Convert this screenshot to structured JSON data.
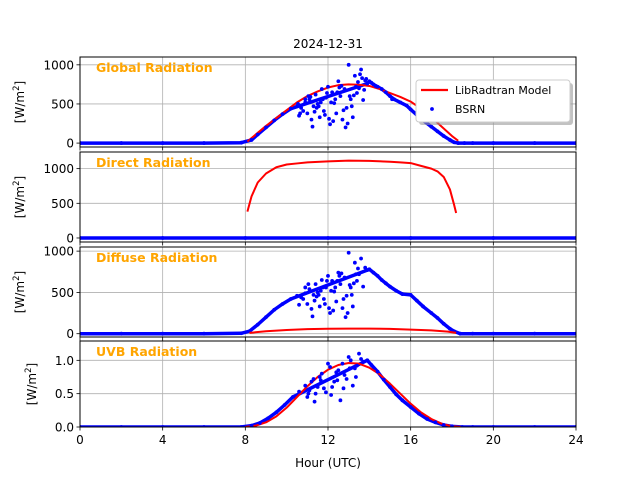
{
  "chart_data": {
    "type": "line",
    "title": "2024-12-31",
    "xlabel": "Hour (UTC)",
    "xlim": [
      0,
      24
    ],
    "xticks": [
      0,
      4,
      8,
      12,
      16,
      20,
      24
    ],
    "grid": true,
    "legend": {
      "location": "right",
      "panel": 0,
      "entries": [
        {
          "label": "LibRadtran Model",
          "style": "line",
          "color": "#ff0000"
        },
        {
          "label": "BSRN",
          "style": "dot",
          "color": "#0000ff"
        }
      ]
    },
    "panels": [
      {
        "title": "Global Radiation",
        "ylabel": "[W/m2]",
        "ylim": [
          -50,
          1100
        ],
        "yticks": [
          0,
          500,
          1000
        ],
        "ytick_labels": [
          "0",
          "500",
          "1000"
        ],
        "series": [
          {
            "name": "LibRadtran Model",
            "type": "line",
            "x": [
              8.1,
              9,
              10,
              10.5,
              11,
              11.5,
              12,
              12.5,
              13,
              13.5,
              14,
              14.5,
              15,
              15.5,
              16,
              16.5,
              17,
              17.5,
              18,
              18.3
            ],
            "y": [
              20,
              220,
              420,
              520,
              600,
              660,
              710,
              740,
              750,
              745,
              730,
              690,
              640,
              590,
              530,
              440,
              330,
              210,
              90,
              30
            ]
          },
          {
            "name": "BSRN",
            "type": "scatter",
            "x": [
              0,
              2,
              4,
              6,
              7.8,
              8.3,
              8.6,
              9,
              9.4,
              9.8,
              10.2,
              10.5,
              10.6,
              10.8,
              10.9,
              11.0,
              11.1,
              11.2,
              11.3,
              11.4,
              11.5,
              11.6,
              11.7,
              11.8,
              11.9,
              12.0,
              12.1,
              12.2,
              12.3,
              12.4,
              12.5,
              12.6,
              12.7,
              12.8,
              12.9,
              13.0,
              13.1,
              13.2,
              13.3,
              13.4,
              13.5,
              13.6,
              13.7,
              13.8,
              13.9,
              14.0,
              14.1,
              14.2,
              14.4,
              14.6,
              14.8,
              15.0,
              15.2,
              15.5,
              15.8,
              16.0,
              16.3,
              16.6,
              17.0,
              17.3,
              17.6,
              17.9,
              18.1,
              18.3,
              18.6,
              19,
              20,
              22,
              24,
              10.7,
              11.05,
              11.35,
              11.65,
              11.95,
              12.25,
              12.55,
              12.85,
              13.15,
              13.45,
              13.75,
              10.9,
              11.25,
              11.55,
              11.85,
              12.15,
              12.45,
              12.75,
              13.05,
              13.35,
              13.65,
              12.05,
              12.35,
              12.65,
              12.95,
              13.25,
              13.55,
              11.45,
              11.75,
              10.55,
              10.65,
              11.15,
              13.85,
              14.3,
              15.1
            ],
            "y": [
              0,
              0,
              0,
              0,
              5,
              40,
              110,
              200,
              290,
              370,
              440,
              470,
              350,
              410,
              520,
              380,
              560,
              300,
              470,
              620,
              500,
              330,
              690,
              410,
              580,
              720,
              240,
              650,
              510,
              380,
              790,
              600,
              300,
              690,
              450,
              1000,
              560,
              330,
              860,
              640,
              700,
              940,
              550,
              800,
              760,
              790,
              770,
              750,
              720,
              690,
              650,
              600,
              560,
              520,
              480,
              430,
              360,
              290,
              210,
              150,
              90,
              40,
              10,
              0,
              0,
              0,
              0,
              0,
              0,
              450,
              600,
              400,
              520,
              640,
              280,
              710,
              200,
              470,
              780,
              680,
              560,
              210,
              470,
              360,
              520,
              650,
              420,
              600,
              720,
              830,
              310,
              560,
              730,
              250,
              610,
              880,
              450,
              560,
              500,
              380,
              590,
              820,
              730,
              560
            ]
          }
        ]
      },
      {
        "title": "Direct Radiation",
        "ylabel": "[W/m2]",
        "ylim": [
          -58,
          1240
        ],
        "yticks": [
          0,
          500,
          1000
        ],
        "ytick_labels": [
          "0",
          "500",
          "1000"
        ],
        "series": [
          {
            "name": "LibRadtran Model",
            "type": "line",
            "x": [
              8.1,
              8.3,
              8.6,
              9.0,
              9.5,
              10.0,
              10.5,
              11.0,
              12.0,
              13.0,
              14.0,
              15.0,
              15.5,
              16.0,
              16.5,
              17.0,
              17.3,
              17.6,
              17.9,
              18.1,
              18.2
            ],
            "y": [
              380,
              600,
              800,
              930,
              1020,
              1060,
              1075,
              1090,
              1105,
              1115,
              1112,
              1100,
              1090,
              1080,
              1040,
              1000,
              960,
              880,
              700,
              480,
              360
            ]
          },
          {
            "name": "BSRN",
            "type": "scatter",
            "x": [
              0,
              4,
              8,
              12,
              16,
              20,
              24
            ],
            "y": [
              0,
              0,
              0,
              0,
              0,
              0,
              0
            ]
          }
        ]
      },
      {
        "title": "Diffuse Radiation",
        "ylabel": "[W/m2]",
        "ylim": [
          -40,
          1050
        ],
        "yticks": [
          0,
          500,
          1000
        ],
        "ytick_labels": [
          "0",
          "500",
          "1000"
        ],
        "series": [
          {
            "name": "LibRadtran Model",
            "type": "line",
            "x": [
              8.2,
              9,
              10,
              11,
              12,
              13,
              14,
              15,
              16,
              17,
              17.8,
              18.2
            ],
            "y": [
              10,
              30,
              45,
              55,
              60,
              62,
              62,
              58,
              50,
              40,
              25,
              10
            ]
          },
          {
            "name": "BSRN",
            "type": "scatter",
            "x": [
              0,
              2,
              4,
              6,
              7.8,
              8.2,
              8.6,
              9,
              9.4,
              9.8,
              10.2,
              10.5,
              10.6,
              10.8,
              10.9,
              11.0,
              11.1,
              11.2,
              11.3,
              11.4,
              11.5,
              11.6,
              11.7,
              11.8,
              11.9,
              12.0,
              12.1,
              12.2,
              12.3,
              12.4,
              12.5,
              12.6,
              12.7,
              12.8,
              12.9,
              13.0,
              13.1,
              13.2,
              13.3,
              13.4,
              13.5,
              13.6,
              13.7,
              13.8,
              13.9,
              14.0,
              14.2,
              14.4,
              14.6,
              14.8,
              15.0,
              15.3,
              15.6,
              16.0,
              16.3,
              16.6,
              17.0,
              17.3,
              17.6,
              17.9,
              18.1,
              18.4,
              19,
              20,
              22,
              24,
              10.7,
              11.05,
              11.35,
              11.65,
              11.95,
              12.25,
              12.55,
              12.85,
              13.15,
              13.45,
              10.9,
              11.25,
              11.55,
              11.85,
              12.15,
              12.45,
              12.75,
              13.05,
              13.35,
              12.05,
              12.35,
              12.65,
              12.95,
              13.25,
              11.45,
              11.75
            ],
            "y": [
              0,
              0,
              0,
              0,
              5,
              30,
              110,
              200,
              290,
              360,
              420,
              460,
              350,
              420,
              490,
              360,
              540,
              300,
              470,
              600,
              500,
              330,
              650,
              420,
              560,
              700,
              250,
              640,
              510,
              390,
              740,
              600,
              310,
              680,
              460,
              980,
              560,
              330,
              860,
              640,
              720,
              910,
              570,
              800,
              770,
              780,
              740,
              700,
              650,
              610,
              570,
              520,
              480,
              470,
              400,
              330,
              250,
              190,
              120,
              60,
              30,
              0,
              0,
              0,
              0,
              0,
              440,
              600,
              400,
              520,
              640,
              280,
              700,
              200,
              470,
              790,
              560,
              210,
              470,
              360,
              520,
              640,
              420,
              590,
              720,
              310,
              560,
              730,
              250,
              610,
              450,
              560
            ]
          }
        ]
      },
      {
        "title": "UVB Radiation",
        "ylabel": "[W/m2]",
        "ylim": [
          0,
          1.29
        ],
        "yticks": [
          0.0,
          0.5,
          1.0
        ],
        "ytick_labels": [
          "0.0",
          "0.5",
          "1.0"
        ],
        "series": [
          {
            "name": "LibRadtran Model",
            "type": "line",
            "x": [
              8.0,
              8.5,
              9.0,
              9.5,
              10.0,
              10.5,
              11.0,
              11.5,
              12.0,
              12.5,
              13.0,
              13.5,
              14.0,
              14.5,
              15.0,
              15.5,
              16.0,
              16.5,
              17.0,
              17.5,
              18.0,
              18.5
            ],
            "y": [
              0.0,
              0.02,
              0.07,
              0.16,
              0.29,
              0.45,
              0.61,
              0.75,
              0.86,
              0.93,
              0.96,
              0.95,
              0.89,
              0.79,
              0.65,
              0.5,
              0.35,
              0.22,
              0.12,
              0.05,
              0.01,
              0.0
            ]
          },
          {
            "name": "BSRN",
            "type": "scatter",
            "x": [
              0,
              2,
              4,
              6,
              7.8,
              8.3,
              8.7,
              9.1,
              9.5,
              9.9,
              10.3,
              10.6,
              10.9,
              11.1,
              11.3,
              11.5,
              11.7,
              11.9,
              12.1,
              12.3,
              12.5,
              12.7,
              12.9,
              13.1,
              13.3,
              13.5,
              13.7,
              13.9,
              14.1,
              14.4,
              14.7,
              15.0,
              15.3,
              15.6,
              16.0,
              16.4,
              16.8,
              17.2,
              17.6,
              18.0,
              18.5,
              19,
              20,
              22,
              24,
              11.0,
              11.2,
              11.4,
              11.6,
              11.8,
              12.0,
              12.2,
              12.4,
              12.6,
              12.8,
              13.0,
              13.2,
              13.4,
              13.6,
              12.15,
              12.45,
              12.75,
              13.05,
              13.35,
              11.05,
              11.35,
              11.65
            ],
            "y": [
              0,
              0,
              0,
              0,
              0.0,
              0.02,
              0.06,
              0.13,
              0.22,
              0.33,
              0.45,
              0.53,
              0.62,
              0.55,
              0.72,
              0.6,
              0.8,
              0.52,
              0.9,
              0.68,
              0.85,
              0.95,
              0.72,
              1.0,
              0.88,
              1.1,
              0.98,
              1.0,
              0.93,
              0.83,
              0.71,
              0.6,
              0.49,
              0.4,
              0.3,
              0.2,
              0.12,
              0.07,
              0.03,
              0.01,
              0.0,
              0,
              0,
              0,
              0,
              0.45,
              0.68,
              0.5,
              0.75,
              0.58,
              0.95,
              0.6,
              0.82,
              0.4,
              0.78,
              1.05,
              0.62,
              0.92,
              1.02,
              0.48,
              0.7,
              0.58,
              0.88,
              0.75,
              0.5,
              0.38,
              0.7
            ]
          }
        ]
      }
    ]
  }
}
